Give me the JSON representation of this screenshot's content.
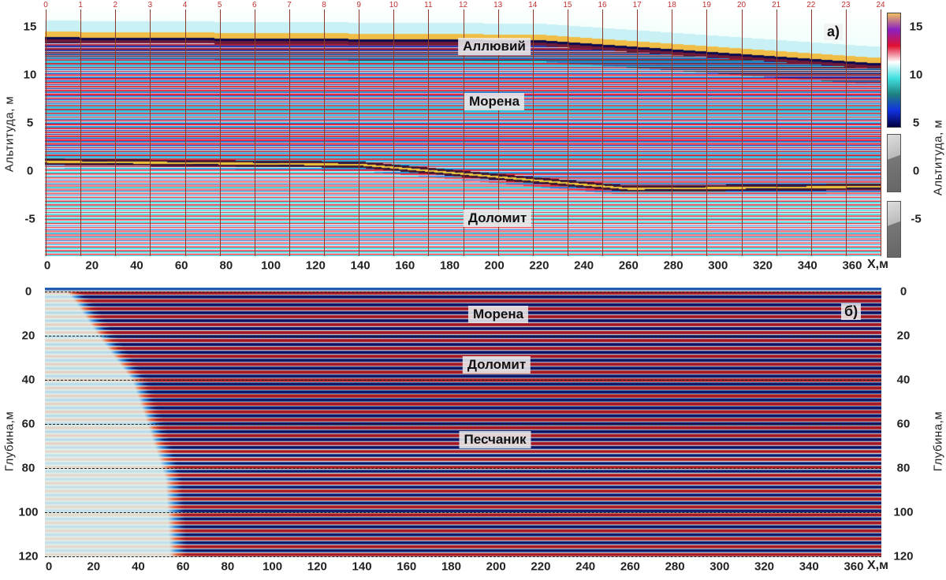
{
  "chart_data": [
    {
      "type": "heatmap",
      "panel_label": "а)",
      "ylabel": "Альтитуда, м",
      "ylabel_right": "Альтитуда, м",
      "xunit": "X,м",
      "x_ticks": [
        0,
        20,
        40,
        60,
        80,
        100,
        120,
        140,
        160,
        180,
        200,
        220,
        240,
        260,
        280,
        300,
        320,
        340,
        360
      ],
      "y_ticks": [
        15,
        10,
        5,
        0,
        -5
      ],
      "y_ticks_right": [
        15,
        10,
        5,
        0,
        -5
      ],
      "xlim": [
        0,
        372
      ],
      "ylim": [
        -9,
        17
      ],
      "marker_numbers": [
        "0",
        "1",
        "2",
        "3",
        "4",
        "5",
        "6",
        "7",
        "8",
        "9",
        "10",
        "11",
        "12",
        "13",
        "14",
        "15",
        "16",
        "17",
        "18",
        "19",
        "20",
        "21",
        "22",
        "23",
        "24"
      ],
      "colorbar": {
        "ticks": [
          15,
          10,
          5
        ],
        "colors": [
          "#f0c060",
          "#8a20c0",
          "#e01030",
          "#ffffff",
          "#40e0e0",
          "#208080",
          "#1030e0",
          "#000040"
        ]
      },
      "annotations": [
        "Аллювий",
        "Морена",
        "Доломит"
      ],
      "surface_altitude": [
        [
          0,
          14.2
        ],
        [
          220,
          13.9
        ],
        [
          370,
          11.5
        ]
      ],
      "reflector_altitude": [
        [
          0,
          1
        ],
        [
          140,
          0.7
        ],
        [
          260,
          -1.8
        ],
        [
          370,
          -1.6
        ]
      ]
    },
    {
      "type": "heatmap",
      "panel_label": "б)",
      "ylabel": "Глубина,м",
      "ylabel_right": "Глубина,м",
      "xunit": "X,м",
      "x_ticks": [
        0,
        20,
        40,
        60,
        80,
        100,
        120,
        140,
        160,
        180,
        200,
        220,
        240,
        260,
        280,
        300,
        320,
        340,
        360
      ],
      "y_ticks": [
        0,
        20,
        40,
        60,
        80,
        100,
        120
      ],
      "y_ticks_right": [
        0,
        20,
        40,
        60,
        80,
        100,
        120
      ],
      "xlim": [
        0,
        372
      ],
      "ylim": [
        120,
        0
      ],
      "grid": "dashed horizontal at y ticks",
      "colors": [
        "#101060",
        "#3070d0",
        "#e0f4ee",
        "#e05030",
        "#a01020"
      ],
      "annotations": [
        "Морена",
        "Доломит",
        "Песчаник"
      ]
    }
  ]
}
